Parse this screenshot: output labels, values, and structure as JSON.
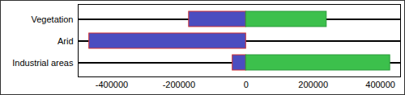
{
  "chart_data": {
    "type": "bar",
    "orientation": "horizontal",
    "categories": [
      "Vegetation",
      "Arid",
      "Industrial areas"
    ],
    "series": [
      {
        "color": "#4b4dc0",
        "values": [
          -170000,
          -467000,
          -40000
        ]
      },
      {
        "color": "#3cc04c",
        "values": [
          240000,
          0,
          429000
        ]
      }
    ],
    "xlim": [
      -500000,
      460000
    ],
    "xticks": [
      -400000,
      -200000,
      0,
      200000,
      400000
    ],
    "grid": true
  }
}
